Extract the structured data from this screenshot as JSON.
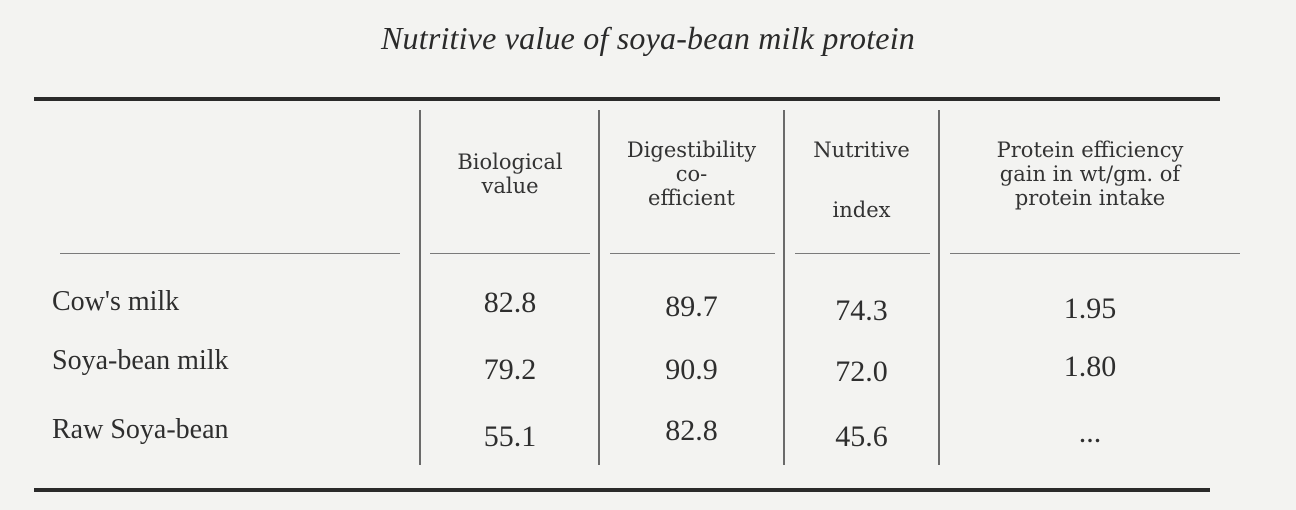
{
  "title": "Nutritive value of soya-bean milk protein",
  "columns": [
    {
      "lines": [
        "Biological",
        "value"
      ]
    },
    {
      "lines": [
        "Digestibility",
        "co-",
        "efficient"
      ]
    },
    {
      "lines": [
        "Nutritive",
        "",
        "index"
      ]
    },
    {
      "lines": [
        "Protein efficiency",
        "gain in wt/gm. of",
        "protein intake"
      ]
    }
  ],
  "rows": [
    {
      "label": "Cow's milk",
      "values": [
        "82.8",
        "89.7",
        "74.3",
        "1.95"
      ]
    },
    {
      "label": "Soya-bean milk",
      "values": [
        "79.2",
        "90.9",
        "72.0",
        "1.80"
      ]
    },
    {
      "label": "Raw Soya-bean",
      "values": [
        "55.1",
        "82.8",
        "45.6",
        "..."
      ]
    }
  ]
}
